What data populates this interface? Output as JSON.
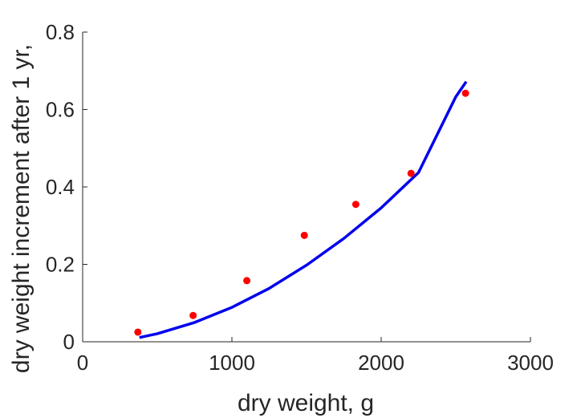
{
  "chart_data": {
    "type": "scatter",
    "title": "",
    "xlabel": "dry weight, g",
    "ylabel": "dry weight increment after 1 yr,",
    "xlim": [
      0,
      3000
    ],
    "ylim": [
      0,
      0.8
    ],
    "xticks": [
      0,
      1000,
      2000,
      3000
    ],
    "yticks": [
      0,
      0.2,
      0.4,
      0.6,
      0.8
    ],
    "xtick_labels": [
      "0",
      "1000",
      "2000",
      "3000"
    ],
    "ytick_labels": [
      "0",
      "0.2",
      "0.4",
      "0.6",
      "0.8"
    ],
    "grid": false,
    "legend": "none",
    "series": [
      {
        "type": "scatter",
        "color": "#ff0000",
        "x": [
          370,
          740,
          1100,
          1485,
          1830,
          2200,
          2565
        ],
        "y": [
          0.025,
          0.068,
          0.158,
          0.275,
          0.355,
          0.435,
          0.642
        ]
      },
      {
        "type": "line",
        "color": "#0000ee",
        "x": [
          380,
          500,
          750,
          1000,
          1250,
          1500,
          1750,
          2000,
          2250,
          2500,
          2570
        ],
        "y": [
          0.011,
          0.021,
          0.05,
          0.089,
          0.138,
          0.198,
          0.267,
          0.346,
          0.437,
          0.633,
          0.672
        ]
      }
    ]
  }
}
